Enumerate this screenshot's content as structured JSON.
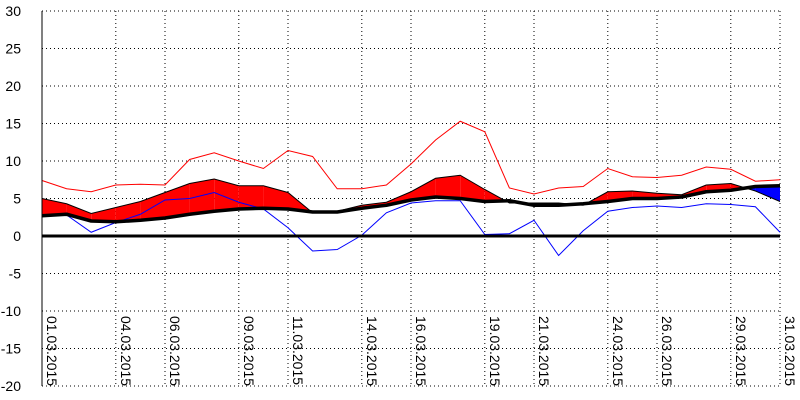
{
  "chart_data": {
    "type": "area",
    "title": "",
    "xlabel": "",
    "ylabel": "",
    "ylim": [
      -20,
      30
    ],
    "yticks": [
      30,
      25,
      20,
      15,
      10,
      5,
      0,
      -5,
      -10,
      -15,
      -20
    ],
    "xticks": [
      "01.03.2015",
      "04.03.2015",
      "06.03.2015",
      "09.03.2015",
      "11.03.2015",
      "14.03.2015",
      "16.03.2015",
      "19.03.2015",
      "21.03.2015",
      "24.03.2015",
      "26.03.2015",
      "29.03.2015",
      "31.03.2015"
    ],
    "grid": true,
    "legend": "none",
    "days": [
      "01.03.2015",
      "02.03.2015",
      "03.03.2015",
      "04.03.2015",
      "05.03.2015",
      "06.03.2015",
      "07.03.2015",
      "08.03.2015",
      "09.03.2015",
      "10.03.2015",
      "11.03.2015",
      "12.03.2015",
      "13.03.2015",
      "14.03.2015",
      "15.03.2015",
      "16.03.2015",
      "17.03.2015",
      "18.03.2015",
      "19.03.2015",
      "20.03.2015",
      "21.03.2015",
      "22.03.2015",
      "23.03.2015",
      "24.03.2015",
      "25.03.2015",
      "26.03.2015",
      "27.03.2015",
      "28.03.2015",
      "29.03.2015",
      "30.03.2015",
      "31.03.2015"
    ],
    "series": [
      {
        "role": "max",
        "color": "#ff0000",
        "values": [
          7.4,
          6.3,
          5.9,
          6.8,
          6.9,
          6.8,
          10.2,
          11.1,
          10.0,
          9.0,
          11.4,
          10.6,
          6.3,
          6.3,
          6.8,
          9.6,
          12.8,
          15.3,
          13.9,
          6.4,
          5.6,
          6.4,
          6.6,
          9.0,
          7.9,
          7.8,
          8.1,
          9.2,
          8.9,
          7.3,
          7.5
        ]
      },
      {
        "role": "mean",
        "color": "#ff0000",
        "values": [
          5.0,
          4.3,
          3.0,
          3.8,
          4.6,
          5.8,
          7.0,
          7.6,
          6.7,
          6.7,
          5.8,
          3.1,
          3.3,
          4.1,
          4.5,
          5.9,
          7.7,
          8.1,
          6.2,
          4.4,
          4.4,
          4.4,
          4.1,
          5.9,
          6.0,
          5.7,
          5.5,
          6.8,
          7.0,
          6.0,
          4.6
        ]
      },
      {
        "role": "min",
        "color": "#0000ff",
        "values": [
          2.6,
          2.8,
          0.5,
          1.8,
          2.9,
          4.8,
          5.0,
          5.8,
          4.5,
          3.6,
          1.1,
          -2.0,
          -1.8,
          0.1,
          3.1,
          4.4,
          4.7,
          4.7,
          0.2,
          0.3,
          2.1,
          -2.6,
          0.7,
          3.3,
          3.8,
          4.0,
          3.8,
          4.3,
          4.2,
          3.9,
          0.5
        ]
      },
      {
        "role": "normal",
        "color": "#000000",
        "values": [
          2.7,
          2.9,
          2.0,
          1.9,
          2.1,
          2.4,
          2.9,
          3.3,
          3.6,
          3.7,
          3.6,
          3.2,
          3.2,
          3.7,
          4.1,
          4.8,
          5.2,
          5.0,
          4.6,
          4.7,
          4.1,
          4.1,
          4.3,
          4.6,
          5.0,
          5.0,
          5.2,
          5.9,
          6.1,
          6.6,
          6.7
        ]
      }
    ],
    "fill_above_color": "#ff0000",
    "fill_below_color": "#0000ff"
  }
}
